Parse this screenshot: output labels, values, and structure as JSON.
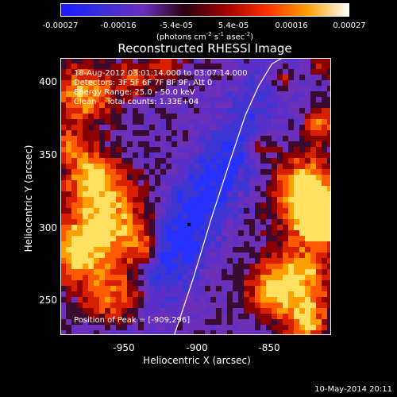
{
  "colorbar": {
    "ticks": [
      "-0.00027",
      "-0.00016",
      "-5.4e-05",
      "5.4e-05",
      "0.00016",
      "0.00027"
    ],
    "colors": [
      "#1b1bff",
      "#3a2fd8",
      "#6a2fc0",
      "#2a0010",
      "#a00000",
      "#ff3000",
      "#ffa000",
      "#ffffff"
    ]
  },
  "unit_parts": [
    "(photons cm",
    "-2",
    " s",
    "-1",
    " asec",
    "-2",
    ")"
  ],
  "title": "Reconstructed RHESSI Image",
  "annotations": {
    "time": "18-Aug-2012 03:01:14.000 to 03:07:14.000",
    "detectors": "Detectors: 3F 5F 6F 7F 8F 9F, Att 0",
    "energy": "Energy Range: 25.0 - 50.0 keV",
    "clean": "Clean    Total counts: 1.33E+04",
    "peak": "Position of Peak = [-909,296]"
  },
  "chart_data": {
    "type": "heatmap",
    "title": "Reconstructed RHESSI Image",
    "xlabel": "Heliocentric X (arcsec)",
    "ylabel": "Heliocentric Y (arcsec)",
    "xlim": [
      -996,
      -813
    ],
    "ylim": [
      221,
      409
    ],
    "xticks": [
      -950,
      -900,
      -850
    ],
    "yticks": [
      250,
      300,
      350,
      400
    ],
    "colorbar_range": [
      -0.00027,
      0.00027
    ],
    "peak": [
      -909,
      296
    ],
    "limb_curve": {
      "x": [
        -919,
        -906,
        -894,
        -881,
        -871,
        -862,
        -853,
        -846
      ],
      "y": [
        221,
        260,
        300,
        340,
        370,
        390,
        405,
        409
      ]
    }
  },
  "footer": "10-May-2014 20:11"
}
